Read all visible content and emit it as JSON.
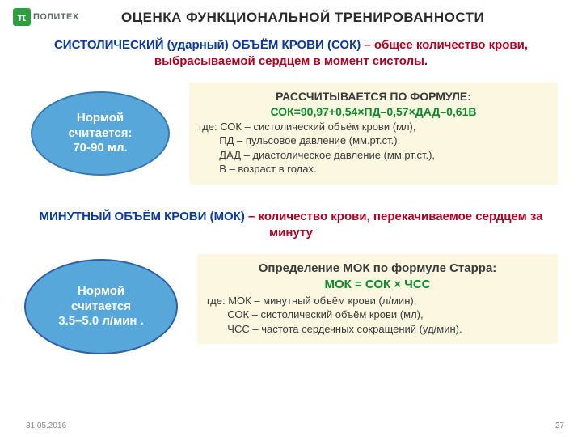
{
  "colors": {
    "logo_green": "#2e9e3f",
    "logo_text": "#5f6f64",
    "title": "#2b2b2b",
    "def_blue": "#0a3b9a",
    "def_red": "#b00020",
    "ellipse_fill": "#58a7db",
    "ellipse_border": "#3479b4",
    "ellipse2_border": "#2e5fa8",
    "box_fill": "#fbf7e0",
    "formula_green": "#0a8a2b",
    "body_text": "#3a3a3a",
    "date_text": "#8a8a8a",
    "pagenum_text": "#7a7a7a"
  },
  "logo": {
    "pi": "π",
    "text": "ПОЛИТЕХ"
  },
  "title": "ОЦЕНКА  ФУНКЦИОНАЛЬНОЙ ТРЕНИРОВАННОСТИ",
  "def1": {
    "blue": "СИСТОЛИЧЕСКИЙ (ударный) ОБЪЁМ КРОВИ (СОК) ",
    "red": "– общее количество крови, выбрасываемой сердцем в момент систолы."
  },
  "ellipse1": {
    "l1": "Нормой",
    "l2": "считается:",
    "l3": "70-90 мл."
  },
  "box1": {
    "head": "РАССЧИТЫВАЕТСЯ ПО ФОРМУЛЕ:",
    "formula": "СОК=90,97+0,54×ПД–0,57×ДАД–0,61В",
    "where": "где: СОК – систолический объём крови (мл),",
    "l2": "       ПД – пульсовое давление (мм.рт.ст.),",
    "l3": "       ДАД – диастолическое давление (мм.рт.ст.),",
    "l4": "       В – возраст в годах."
  },
  "def2": {
    "blue": "МИНУТНЫЙ ОБЪЁМ КРОВИ (МОК) ",
    "red": "– количество крови, перекачиваемое сердцем за минуту"
  },
  "ellipse2": {
    "l1": "Нормой",
    "l2": "считается",
    "l3": "3.5–5.0 л/мин ."
  },
  "box2": {
    "head": "Определение МОК по формуле Старра:",
    "formula": "МОК = СОК × ЧСС",
    "where": "где: МОК – минутный объём крови (л/мин),",
    "l2": "       СОК – систолический объём крови (мл),",
    "l3": "       ЧСС – частота сердечных сокращений (уд/мин)."
  },
  "footer": {
    "date": "31.05.2016",
    "page": "27"
  }
}
